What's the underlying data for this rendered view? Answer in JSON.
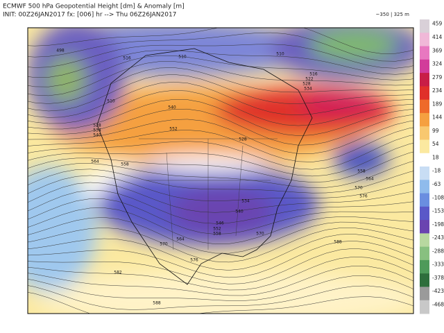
{
  "header": {
    "title": "ECMWF 500 hPa Geopotential Height [dm] & Anomaly [m]",
    "init": "INIT: 00Z26JAN2017 fx: [006] hr --> Thu 06Z26JAN2017",
    "range": "~350 | 325 m"
  },
  "colorbar": {
    "ticks": [
      459,
      414,
      369,
      324,
      279,
      234,
      189,
      144,
      99,
      54,
      18,
      -18,
      -63,
      -108,
      -153,
      -198,
      -243,
      -288,
      -333,
      -378,
      -423,
      -468
    ],
    "colors": [
      "#d9d0d8",
      "#f0b8d8",
      "#e878c0",
      "#d23c9a",
      "#c81e46",
      "#e0302a",
      "#ee6a2a",
      "#f5a040",
      "#f8c870",
      "#fbe9a0",
      "#ffffff",
      "#c8ddf4",
      "#8fbbec",
      "#6a8ee0",
      "#5a58c8",
      "#6a44b0",
      "#b8d8a0",
      "#88c080",
      "#4e9a5a",
      "#2e6e3c",
      "#9a9a9a",
      "#c8c8c8"
    ]
  },
  "contour_labels": [
    "498",
    "516",
    "510",
    "510",
    "528",
    "534",
    "540",
    "540",
    "552",
    "528",
    "564",
    "558",
    "534",
    "540",
    "546",
    "552",
    "558",
    "564",
    "570",
    "576",
    "582",
    "588",
    "570",
    "576",
    "570",
    "558",
    "564",
    "516",
    "522",
    "528",
    "534",
    "510",
    "588"
  ]
}
